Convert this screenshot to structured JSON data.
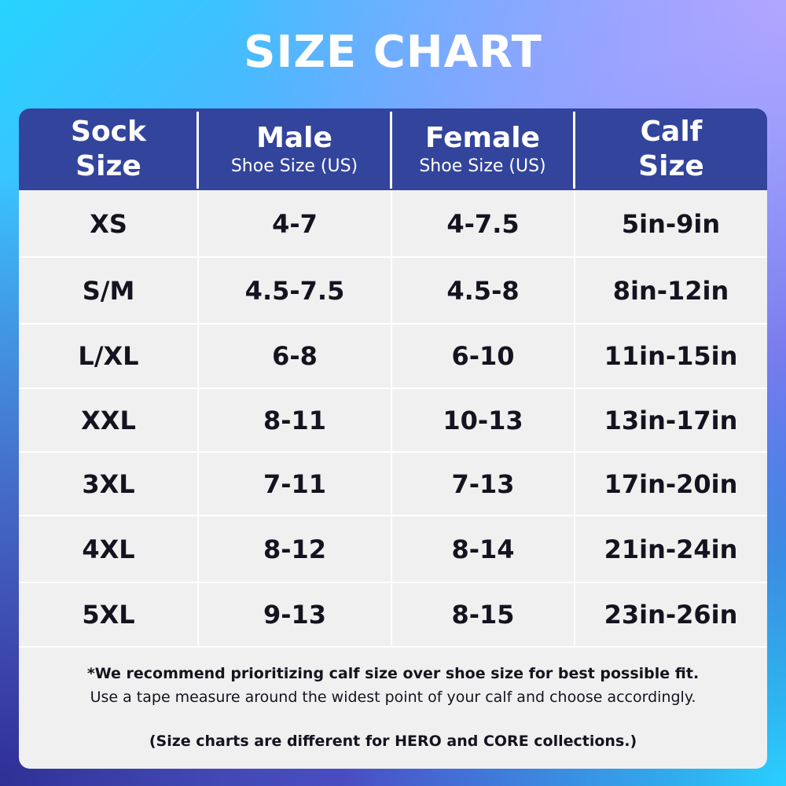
{
  "title": "SIZE CHART",
  "colors": {
    "header_background": "#33449c",
    "table_background": "#f0f0f0",
    "text": "#15131f",
    "title_text": "#ffffff"
  },
  "headers": [
    {
      "main": "Sock\nSize",
      "sub": ""
    },
    {
      "main": "Male",
      "sub": "Shoe Size (US)"
    },
    {
      "main": "Female",
      "sub": "Shoe Size (US)"
    },
    {
      "main": "Calf\nSize",
      "sub": ""
    }
  ],
  "rows": [
    [
      "XS",
      "4-7",
      "4-7.5",
      "5in-9in"
    ],
    [
      "S/M",
      "4.5-7.5",
      "4.5-8",
      "8in-12in"
    ],
    [
      "L/XL",
      "6-8",
      "6-10",
      "11in-15in"
    ],
    [
      "XXL",
      "8-11",
      "10-13",
      "13in-17in"
    ],
    [
      "3XL",
      "7-11",
      "7-13",
      "17in-20in"
    ],
    [
      "4XL",
      "8-12",
      "8-14",
      "21in-24in"
    ],
    [
      "5XL",
      "9-13",
      "8-15",
      "23in-26in"
    ]
  ],
  "notes": {
    "recommendation": "*We recommend prioritizing calf size over shoe size for best possible fit.",
    "instruction": "Use a tape measure around the widest point of your calf and choose accordingly.",
    "collections": "(Size charts are different for HERO and CORE collections.)"
  }
}
